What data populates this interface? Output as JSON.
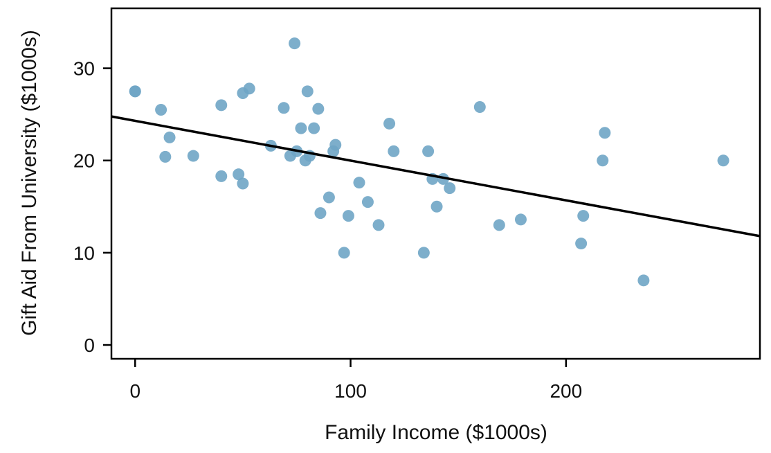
{
  "chart_data": {
    "type": "scatter",
    "title": "",
    "xlabel": "Family Income ($1000s)",
    "ylabel": "Gift Aid From University ($1000s)",
    "xlim": [
      -11,
      290
    ],
    "ylim": [
      -1.5,
      36.5
    ],
    "x_ticks": [
      0,
      100,
      200
    ],
    "y_ticks": [
      0,
      10,
      20,
      30
    ],
    "grid": false,
    "legend": "none",
    "point_color": "#6fa5c5",
    "line_color": "#000000",
    "regression_line": {
      "intercept": 24.3,
      "slope": -0.0431
    },
    "points": [
      {
        "x": 0,
        "y": 27.5
      },
      {
        "x": 0,
        "y": 27.5
      },
      {
        "x": 12,
        "y": 25.5
      },
      {
        "x": 14,
        "y": 20.4
      },
      {
        "x": 16,
        "y": 22.5
      },
      {
        "x": 27,
        "y": 20.5
      },
      {
        "x": 40,
        "y": 26.0
      },
      {
        "x": 40,
        "y": 18.3
      },
      {
        "x": 48,
        "y": 18.5
      },
      {
        "x": 50,
        "y": 27.3
      },
      {
        "x": 50,
        "y": 17.5
      },
      {
        "x": 53,
        "y": 27.8
      },
      {
        "x": 63,
        "y": 21.6
      },
      {
        "x": 69,
        "y": 25.7
      },
      {
        "x": 72,
        "y": 20.5
      },
      {
        "x": 74,
        "y": 32.7
      },
      {
        "x": 75,
        "y": 21.0
      },
      {
        "x": 77,
        "y": 23.5
      },
      {
        "x": 79,
        "y": 20.0
      },
      {
        "x": 80,
        "y": 27.5
      },
      {
        "x": 81,
        "y": 20.5
      },
      {
        "x": 83,
        "y": 23.5
      },
      {
        "x": 85,
        "y": 25.6
      },
      {
        "x": 86,
        "y": 14.3
      },
      {
        "x": 90,
        "y": 16.0
      },
      {
        "x": 92,
        "y": 21.0
      },
      {
        "x": 93,
        "y": 21.7
      },
      {
        "x": 97,
        "y": 10.0
      },
      {
        "x": 99,
        "y": 14.0
      },
      {
        "x": 104,
        "y": 17.6
      },
      {
        "x": 108,
        "y": 15.5
      },
      {
        "x": 113,
        "y": 13.0
      },
      {
        "x": 118,
        "y": 24.0
      },
      {
        "x": 120,
        "y": 21.0
      },
      {
        "x": 134,
        "y": 10.0
      },
      {
        "x": 136,
        "y": 21.0
      },
      {
        "x": 138,
        "y": 18.0
      },
      {
        "x": 140,
        "y": 15.0
      },
      {
        "x": 143,
        "y": 18.0
      },
      {
        "x": 146,
        "y": 17.0
      },
      {
        "x": 160,
        "y": 25.8
      },
      {
        "x": 169,
        "y": 13.0
      },
      {
        "x": 179,
        "y": 13.6
      },
      {
        "x": 207,
        "y": 11.0
      },
      {
        "x": 208,
        "y": 14.0
      },
      {
        "x": 217,
        "y": 20.0
      },
      {
        "x": 218,
        "y": 23.0
      },
      {
        "x": 236,
        "y": 7.0
      },
      {
        "x": 273,
        "y": 20.0
      }
    ]
  }
}
